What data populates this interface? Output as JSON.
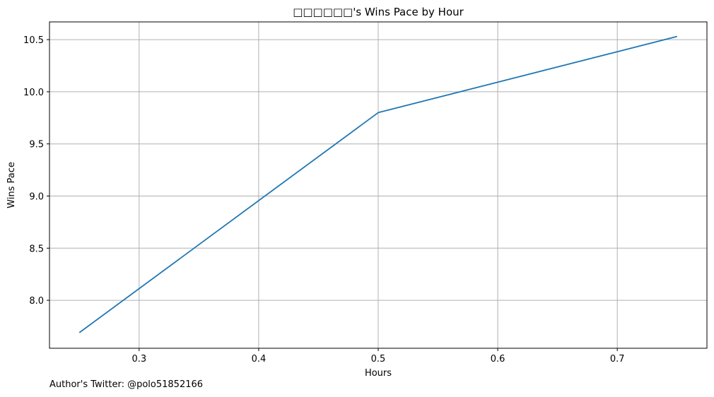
{
  "chart_data": {
    "type": "line",
    "title": "□□□□□□'s Wins Pace by Hour",
    "xlabel": "Hours",
    "ylabel": "Wins Pace",
    "x": [
      0.25,
      0.5,
      0.75
    ],
    "series": [
      {
        "values": [
          7.69,
          9.8,
          10.53
        ],
        "color": "#1f77b4"
      }
    ],
    "xlim": [
      0.225,
      0.775
    ],
    "ylim": [
      7.54,
      10.67
    ],
    "xticks": [
      0.3,
      0.4,
      0.5,
      0.6,
      0.7
    ],
    "xtick_labels": [
      "0.3",
      "0.4",
      "0.5",
      "0.6",
      "0.7"
    ],
    "yticks": [
      8.0,
      8.5,
      9.0,
      9.5,
      10.0,
      10.5
    ],
    "ytick_labels": [
      "8.0",
      "8.5",
      "9.0",
      "9.5",
      "10.0",
      "10.5"
    ],
    "grid": true,
    "legend": "none"
  },
  "footer": {
    "author_text": "Author's Twitter: @polo51852166"
  },
  "colors": {
    "line": "#1f77b4",
    "grid": "#b0b0b0",
    "axes": "#000000"
  }
}
